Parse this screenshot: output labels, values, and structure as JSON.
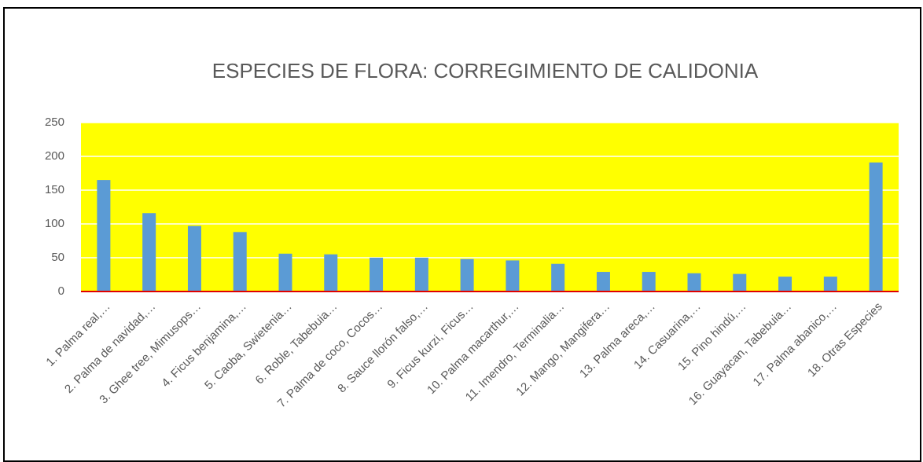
{
  "chart_data": {
    "type": "bar",
    "title": "ESPECIES DE FLORA: CORREGIMIENTO DE CALIDONIA",
    "categories": [
      "1. Palma real,…",
      "2. Palma de navidad,…",
      "3. Ghee tree, Mimusops…",
      "4. Ficus benjamina,…",
      "5. Caoba, Swietenia…",
      "6. Roble, Tabebuia…",
      "7. Palma de coco, Cocos…",
      "8. Sauce llorón falso,…",
      "9. Ficus kurzi, Ficus…",
      "10. Palma macarthur,…",
      "11. Imendro, Terminalia…",
      "12. Mango, Mangifera…",
      "13. Palma areca,…",
      "14. Casuarina,…",
      "15. Pino hindú,…",
      "16. Guayacan, Tabebuia…",
      "17. Palma abanico,…",
      "18. Otras Especies"
    ],
    "values": [
      165,
      116,
      97,
      88,
      56,
      55,
      50,
      50,
      48,
      46,
      41,
      29,
      29,
      27,
      26,
      22,
      22,
      191
    ],
    "color": "#5b9bd5",
    "ylim": [
      0,
      250
    ],
    "yticks": [
      0,
      50,
      100,
      150,
      200,
      250
    ],
    "grid": true
  }
}
